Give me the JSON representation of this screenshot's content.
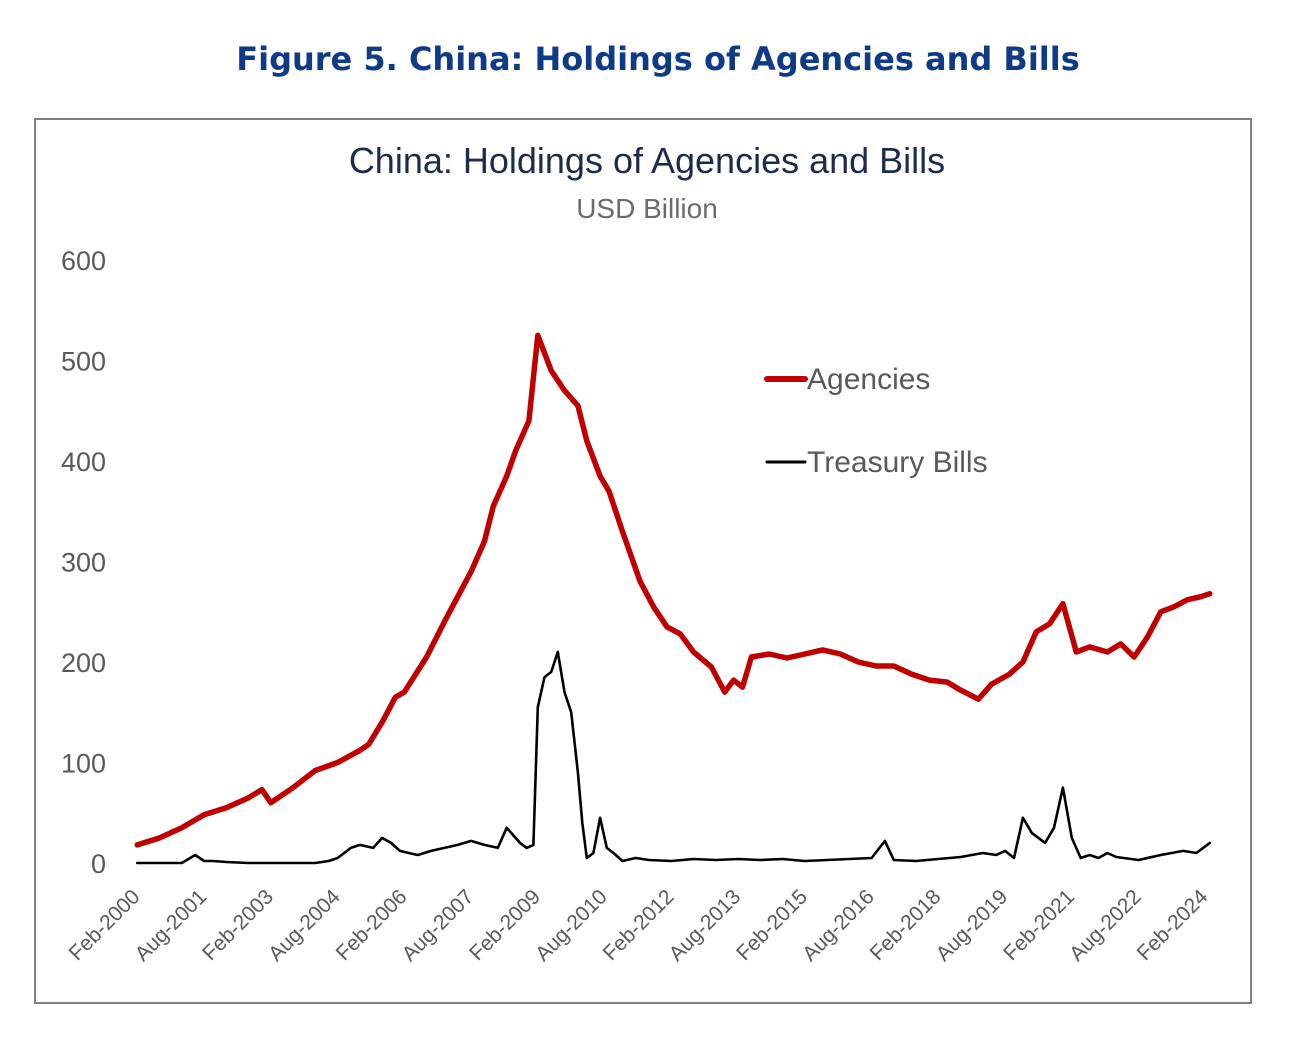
{
  "figure": {
    "title": "Figure 5. China: Holdings of Agencies and Bills"
  },
  "colors": {
    "figure_title": "#0f3a87",
    "chart_title": "#1d2b4a",
    "subtitle": "#6b6b6b",
    "axis_text": "#595959",
    "agencies": "#c00000",
    "treasury_bills": "#000000",
    "frame": "#7f7f7f"
  },
  "chart_data": {
    "type": "line",
    "title": "China: Holdings of Agencies and Bills",
    "subtitle": "USD Billion",
    "xlabel": "",
    "ylabel": "",
    "ylim": [
      0,
      600
    ],
    "yticks": [
      0,
      100,
      200,
      300,
      400,
      500,
      600
    ],
    "ytick_labels": [
      "0",
      "100",
      "200",
      "300",
      "400",
      "500",
      "600"
    ],
    "xlim": [
      2000.083,
      2024.083
    ],
    "x_tick_values": [
      2000.083,
      2001.583,
      2003.083,
      2004.583,
      2006.083,
      2007.583,
      2009.083,
      2010.583,
      2012.083,
      2013.583,
      2015.083,
      2016.583,
      2018.083,
      2019.583,
      2021.083,
      2022.583,
      2024.083
    ],
    "x_tick_labels": [
      "Feb-2000",
      "Aug-2001",
      "Feb-2003",
      "Aug-2004",
      "Feb-2006",
      "Aug-2007",
      "Feb-2009",
      "Aug-2010",
      "Feb-2012",
      "Aug-2013",
      "Feb-2015",
      "Aug-2016",
      "Feb-2018",
      "Aug-2019",
      "Feb-2021",
      "Aug-2022",
      "Feb-2024"
    ],
    "grid": false,
    "legend_position": "top-right",
    "series": [
      {
        "name": "Agencies",
        "color": "#c00000",
        "x": [
          2000.0,
          2000.5,
          2001.0,
          2001.5,
          2002.0,
          2002.5,
          2002.8,
          2003.0,
          2003.5,
          2004.0,
          2004.5,
          2005.0,
          2005.2,
          2005.5,
          2005.8,
          2006.0,
          2006.5,
          2006.9,
          2007.2,
          2007.5,
          2007.8,
          2008.0,
          2008.15,
          2008.3,
          2008.5,
          2008.8,
          2009.0,
          2009.3,
          2009.6,
          2009.9,
          2010.1,
          2010.4,
          2010.6,
          2010.9,
          2011.3,
          2011.6,
          2011.9,
          2012.2,
          2012.5,
          2012.9,
          2013.2,
          2013.4,
          2013.6,
          2013.8,
          2014.2,
          2014.6,
          2015.0,
          2015.4,
          2015.8,
          2016.2,
          2016.6,
          2017.0,
          2017.4,
          2017.8,
          2018.2,
          2018.5,
          2018.9,
          2019.2,
          2019.6,
          2019.9,
          2020.2,
          2020.5,
          2020.8,
          2021.1,
          2021.4,
          2021.8,
          2022.1,
          2022.4,
          2022.7,
          2023.0,
          2023.3,
          2023.6,
          2023.9,
          2024.1
        ],
        "values": [
          18,
          25,
          35,
          48,
          55,
          65,
          73,
          60,
          75,
          92,
          100,
          112,
          118,
          140,
          165,
          170,
          205,
          240,
          265,
          290,
          320,
          355,
          370,
          385,
          410,
          440,
          525,
          490,
          470,
          455,
          420,
          385,
          370,
          330,
          280,
          255,
          235,
          228,
          210,
          195,
          170,
          182,
          175,
          205,
          208,
          204,
          208,
          212,
          208,
          200,
          196,
          196,
          188,
          182,
          180,
          172,
          163,
          178,
          188,
          200,
          230,
          238,
          258,
          210,
          215,
          210,
          218,
          205,
          225,
          250,
          255,
          262,
          265,
          268
        ]
      },
      {
        "name": "Treasury Bills",
        "color": "#000000",
        "x": [
          2000.0,
          2000.4,
          2000.8,
          2001.0,
          2001.3,
          2001.5,
          2001.7,
          2002.0,
          2002.5,
          2003.0,
          2003.5,
          2004.0,
          2004.3,
          2004.5,
          2004.8,
          2005.0,
          2005.3,
          2005.5,
          2005.7,
          2005.9,
          2006.1,
          2006.3,
          2006.6,
          2006.9,
          2007.2,
          2007.5,
          2007.8,
          2008.1,
          2008.3,
          2008.6,
          2008.75,
          2008.9,
          2009.0,
          2009.15,
          2009.3,
          2009.45,
          2009.6,
          2009.75,
          2009.9,
          2010.0,
          2010.1,
          2010.25,
          2010.4,
          2010.55,
          2010.7,
          2010.9,
          2011.2,
          2011.5,
          2012.0,
          2012.5,
          2013.0,
          2013.5,
          2014.0,
          2014.5,
          2015.0,
          2015.5,
          2016.0,
          2016.5,
          2016.8,
          2017.0,
          2017.5,
          2018.0,
          2018.5,
          2019.0,
          2019.3,
          2019.5,
          2019.7,
          2019.9,
          2020.1,
          2020.4,
          2020.6,
          2020.8,
          2021.0,
          2021.2,
          2021.4,
          2021.6,
          2021.8,
          2022.0,
          2022.5,
          2023.0,
          2023.5,
          2023.8,
          2024.1
        ],
        "values": [
          0,
          0,
          0,
          0,
          8,
          2,
          2,
          1,
          0,
          0,
          0,
          0,
          2,
          5,
          15,
          18,
          15,
          25,
          20,
          12,
          10,
          8,
          12,
          15,
          18,
          22,
          18,
          15,
          35,
          20,
          15,
          18,
          155,
          185,
          190,
          210,
          170,
          150,
          90,
          40,
          5,
          10,
          45,
          15,
          10,
          2,
          5,
          3,
          2,
          4,
          3,
          4,
          3,
          4,
          2,
          3,
          4,
          5,
          22,
          3,
          2,
          4,
          6,
          10,
          8,
          12,
          5,
          45,
          30,
          20,
          35,
          75,
          25,
          5,
          8,
          5,
          10,
          6,
          3,
          8,
          12,
          10,
          20
        ]
      }
    ]
  }
}
